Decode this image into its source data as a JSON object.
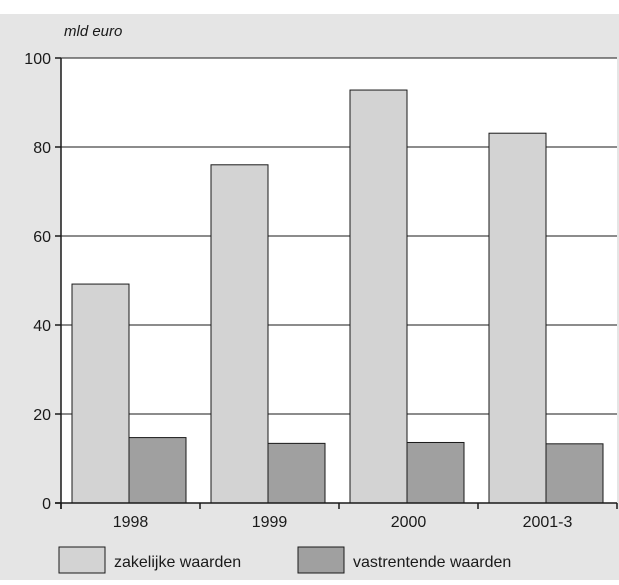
{
  "chart_data": {
    "type": "bar",
    "title": "",
    "unit_label": "mld euro",
    "categories": [
      "1998",
      "1999",
      "2000",
      "2001-3"
    ],
    "series": [
      {
        "name": "zakelijke waarden",
        "values": [
          49.2,
          76.0,
          92.8,
          83.1
        ],
        "color": "#d3d3d3"
      },
      {
        "name": "vastrentende waarden",
        "values": [
          14.7,
          13.4,
          13.6,
          13.3
        ],
        "color": "#a0a0a0"
      }
    ],
    "ylim": [
      0,
      100
    ],
    "yticks": [
      0,
      20,
      40,
      60,
      80,
      100
    ],
    "grid": true,
    "legend_position": "bottom",
    "colors": {
      "background": "#e5e5e5",
      "plot_background": "#ffffff",
      "gridline": "#1a1a1a"
    }
  }
}
